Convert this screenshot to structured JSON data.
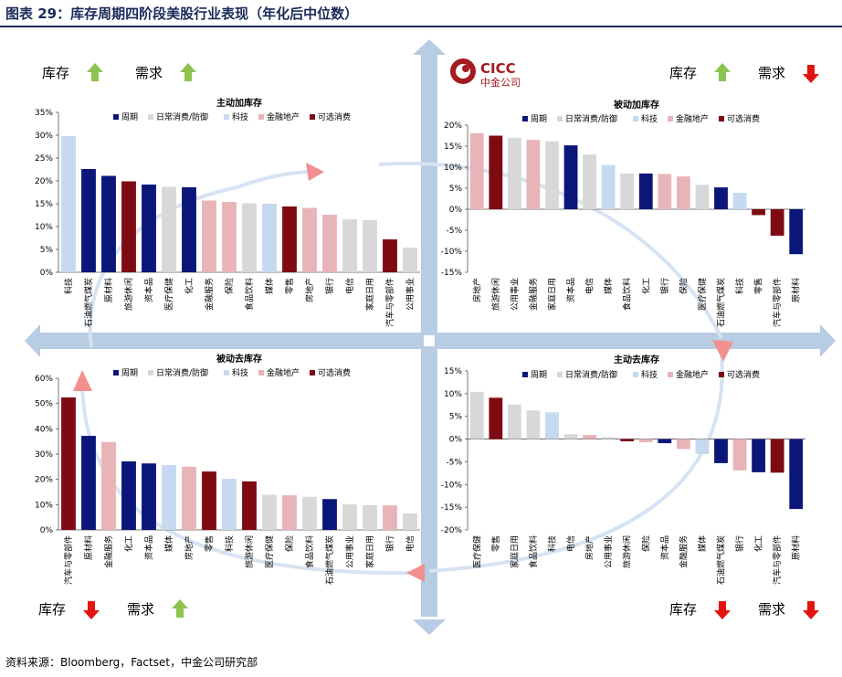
{
  "page_title": "图表 29：库存周期四阶段美股行业表现（年化后中位数）",
  "source": "资料来源：Bloomberg，Factset，中金公司研究部",
  "logo": {
    "en": "CICC",
    "cn": "中金公司"
  },
  "legend": [
    {
      "label": "周期",
      "color": "#0b1679"
    },
    {
      "label": "日常消费/防御",
      "color": "#d8d8d8"
    },
    {
      "label": "科技",
      "color": "#c6d9f0"
    },
    {
      "label": "金融地产",
      "color": "#e8b4b8"
    },
    {
      "label": "可选消费",
      "color": "#7f0b12"
    }
  ],
  "colors": {
    "cycle": "#0b1679",
    "staples": "#d8d8d8",
    "tech": "#c6d9f0",
    "fin": "#e8b4b8",
    "disc": "#7f0b12",
    "up_arrow": "#8cc450",
    "down_arrow": "#e3140f",
    "axis_arrow": "#b8cce4",
    "cycle_arrow": "#dfe8f4",
    "cycle_arrow_head": "#f07f7f"
  },
  "quadrant_labels": {
    "tl": [
      {
        "text": "库存",
        "dir": "up"
      },
      {
        "text": "需求",
        "dir": "up"
      }
    ],
    "tr": [
      {
        "text": "库存",
        "dir": "up"
      },
      {
        "text": "需求",
        "dir": "down"
      }
    ],
    "bl": [
      {
        "text": "库存",
        "dir": "down"
      },
      {
        "text": "需求",
        "dir": "up"
      }
    ],
    "br": [
      {
        "text": "库存",
        "dir": "down"
      },
      {
        "text": "需求",
        "dir": "down"
      }
    ]
  },
  "chart_data": [
    {
      "type": "bar",
      "title": "主动加库存",
      "ylim": [
        0,
        35
      ],
      "yticks": [
        0,
        5,
        10,
        15,
        20,
        25,
        30,
        35
      ],
      "categories": [
        "科技",
        "石油燃气煤炭",
        "原材料",
        "旅游休闲",
        "资本品",
        "医疗保健",
        "化工",
        "金融服务",
        "保险",
        "食品饮料",
        "媒体",
        "零售",
        "房地产",
        "银行",
        "电信",
        "家庭日用",
        "汽车与零部件",
        "公用事业"
      ],
      "values": [
        29.8,
        22.6,
        21.1,
        19.9,
        19.2,
        18.7,
        18.6,
        15.7,
        15.4,
        15.1,
        15.0,
        14.4,
        14.1,
        12.6,
        11.6,
        11.4,
        7.2,
        5.4
      ],
      "groups": [
        "tech",
        "cycle",
        "cycle",
        "disc",
        "cycle",
        "staples",
        "cycle",
        "fin",
        "fin",
        "staples",
        "tech",
        "disc",
        "fin",
        "fin",
        "staples",
        "staples",
        "disc",
        "staples"
      ]
    },
    {
      "type": "bar",
      "title": "被动加库存",
      "ylim": [
        -15,
        20
      ],
      "yticks": [
        -15,
        -10,
        -5,
        0,
        5,
        10,
        15,
        20
      ],
      "categories": [
        "房地产",
        "旅游休闲",
        "公用事业",
        "金融服务",
        "家庭日用",
        "资本品",
        "电信",
        "媒体",
        "食品饮料",
        "化工",
        "银行",
        "保险",
        "医疗保健",
        "石油燃气煤炭",
        "科技",
        "零售",
        "汽车与零部件",
        "原材料"
      ],
      "values": [
        18.1,
        17.5,
        17.0,
        16.5,
        16.2,
        15.2,
        13.0,
        10.5,
        8.5,
        8.5,
        8.4,
        7.8,
        5.8,
        5.2,
        3.9,
        -1.4,
        -6.3,
        -10.7
      ],
      "groups": [
        "fin",
        "disc",
        "staples",
        "fin",
        "staples",
        "cycle",
        "staples",
        "tech",
        "staples",
        "cycle",
        "fin",
        "fin",
        "staples",
        "cycle",
        "tech",
        "disc",
        "disc",
        "cycle"
      ]
    },
    {
      "type": "bar",
      "title": "被动去库存",
      "ylim": [
        0,
        60
      ],
      "yticks": [
        0,
        10,
        20,
        30,
        40,
        50,
        60
      ],
      "categories": [
        "汽车与零部件",
        "原材料",
        "金融服务",
        "化工",
        "资本品",
        "媒体",
        "房地产",
        "零售",
        "科技",
        "旅游休闲",
        "医疗保健",
        "保险",
        "食品饮料",
        "石油燃气煤炭",
        "公用事业",
        "家庭日用",
        "银行",
        "电信"
      ],
      "values": [
        52.4,
        37.2,
        34.8,
        27.1,
        26.3,
        25.7,
        25.0,
        23.1,
        20.2,
        19.2,
        13.9,
        13.7,
        13.1,
        12.2,
        10.1,
        9.8,
        9.7,
        6.5
      ],
      "groups": [
        "disc",
        "cycle",
        "fin",
        "cycle",
        "cycle",
        "tech",
        "fin",
        "disc",
        "tech",
        "disc",
        "staples",
        "fin",
        "staples",
        "cycle",
        "staples",
        "staples",
        "fin",
        "staples"
      ]
    },
    {
      "type": "bar",
      "title": "主动去库存",
      "ylim": [
        -20,
        15
      ],
      "yticks": [
        -20,
        -15,
        -10,
        -5,
        0,
        5,
        10,
        15
      ],
      "categories": [
        "医疗保健",
        "零售",
        "家庭日用",
        "食品饮料",
        "科技",
        "电信",
        "房地产",
        "公用事业",
        "旅游休闲",
        "保险",
        "资本品",
        "金融服务",
        "媒体",
        "石油燃气煤炭",
        "银行",
        "化工",
        "汽车与零部件",
        "原材料"
      ],
      "values": [
        10.4,
        9.1,
        7.6,
        6.3,
        5.9,
        1.1,
        0.9,
        0.4,
        -0.5,
        -0.7,
        -0.9,
        -2.2,
        -3.3,
        -5.3,
        -6.9,
        -7.3,
        -7.4,
        -15.4
      ],
      "groups": [
        "staples",
        "disc",
        "staples",
        "staples",
        "tech",
        "staples",
        "fin",
        "staples",
        "disc",
        "fin",
        "cycle",
        "fin",
        "tech",
        "cycle",
        "fin",
        "cycle",
        "disc",
        "cycle"
      ]
    }
  ]
}
